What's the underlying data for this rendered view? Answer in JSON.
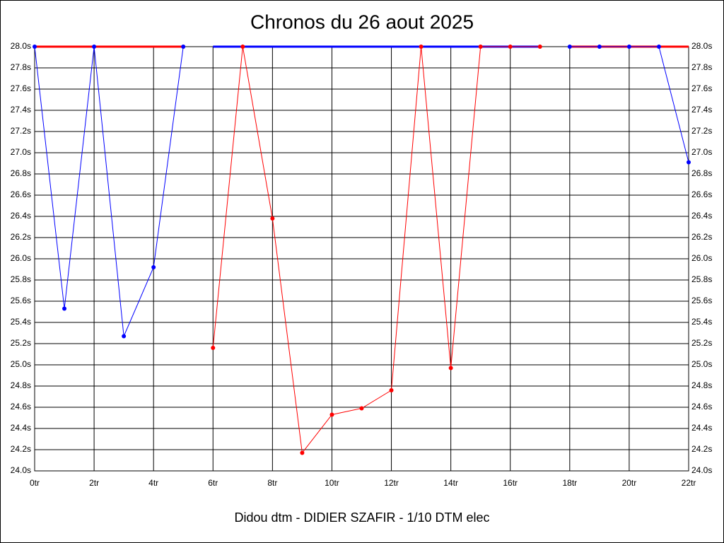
{
  "chart_data": {
    "type": "line",
    "title": "Chronos du 26 aout 2025",
    "footer": "Didou dtm - DIDIER SZAFIR - 1/10 DTM elec",
    "x": [
      0,
      1,
      2,
      3,
      4,
      5,
      6,
      7,
      8,
      9,
      10,
      11,
      12,
      13,
      14,
      15,
      16,
      17,
      18,
      19,
      20,
      21,
      22
    ],
    "xlim": [
      0,
      22
    ],
    "xticks": [
      {
        "value": 0,
        "label": "0tr"
      },
      {
        "value": 2,
        "label": "2tr"
      },
      {
        "value": 4,
        "label": "4tr"
      },
      {
        "value": 6,
        "label": "6tr"
      },
      {
        "value": 8,
        "label": "8tr"
      },
      {
        "value": 10,
        "label": "10tr"
      },
      {
        "value": 12,
        "label": "12tr"
      },
      {
        "value": 14,
        "label": "14tr"
      },
      {
        "value": 16,
        "label": "16tr"
      },
      {
        "value": 18,
        "label": "18tr"
      },
      {
        "value": 20,
        "label": "20tr"
      },
      {
        "value": 22,
        "label": "22tr"
      }
    ],
    "ylim": [
      24,
      28
    ],
    "yticks": [
      {
        "value": 24,
        "label": "24.0s"
      },
      {
        "value": 24.2,
        "label": "24.2s"
      },
      {
        "value": 24.4,
        "label": "24.4s"
      },
      {
        "value": 24.6,
        "label": "24.6s"
      },
      {
        "value": 24.8,
        "label": "24.8s"
      },
      {
        "value": 25,
        "label": "25.0s"
      },
      {
        "value": 25.2,
        "label": "25.2s"
      },
      {
        "value": 25.4,
        "label": "25.4s"
      },
      {
        "value": 25.6,
        "label": "25.6s"
      },
      {
        "value": 25.8,
        "label": "25.8s"
      },
      {
        "value": 26,
        "label": "26.0s"
      },
      {
        "value": 26.2,
        "label": "26.2s"
      },
      {
        "value": 26.4,
        "label": "26.4s"
      },
      {
        "value": 26.6,
        "label": "26.6s"
      },
      {
        "value": 26.8,
        "label": "26.8s"
      },
      {
        "value": 27,
        "label": "27.0s"
      },
      {
        "value": 27.2,
        "label": "27.2s"
      },
      {
        "value": 27.4,
        "label": "27.4s"
      },
      {
        "value": 27.6,
        "label": "27.6s"
      },
      {
        "value": 27.8,
        "label": "27.8s"
      },
      {
        "value": 28,
        "label": "28.0s"
      }
    ],
    "y2lim": [
      24,
      28
    ],
    "y2ticks": [
      {
        "value": 24,
        "label": "24.0s"
      },
      {
        "value": 24.2,
        "label": "24.2s"
      },
      {
        "value": 24.4,
        "label": "24.4s"
      },
      {
        "value": 24.6,
        "label": "24.6s"
      },
      {
        "value": 24.8,
        "label": "24.8s"
      },
      {
        "value": 25,
        "label": "25.0s"
      },
      {
        "value": 25.2,
        "label": "25.2s"
      },
      {
        "value": 25.4,
        "label": "25.4s"
      },
      {
        "value": 25.6,
        "label": "25.6s"
      },
      {
        "value": 25.8,
        "label": "25.8s"
      },
      {
        "value": 26,
        "label": "26.0s"
      },
      {
        "value": 26.2,
        "label": "26.2s"
      },
      {
        "value": 26.4,
        "label": "26.4s"
      },
      {
        "value": 26.6,
        "label": "26.6s"
      },
      {
        "value": 26.8,
        "label": "26.8s"
      },
      {
        "value": 27,
        "label": "27.0s"
      },
      {
        "value": 27.2,
        "label": "27.2s"
      },
      {
        "value": 27.4,
        "label": "27.4s"
      },
      {
        "value": 27.6,
        "label": "27.6s"
      },
      {
        "value": 27.8,
        "label": "27.8s"
      },
      {
        "value": 28,
        "label": "28.0s"
      }
    ],
    "grid": true,
    "series": [
      {
        "color": "#ff0000",
        "line_width": 3,
        "markers": false,
        "values": [
          28,
          28,
          28,
          28,
          28,
          28,
          null,
          null,
          null,
          null,
          null,
          null,
          null,
          null,
          null,
          null,
          null,
          null,
          28,
          28,
          28,
          28,
          28
        ]
      },
      {
        "color": "#0000ff",
        "line_width": 3,
        "markers": false,
        "values": [
          null,
          null,
          null,
          null,
          null,
          null,
          28,
          28,
          28,
          28,
          28,
          28,
          28,
          28,
          28,
          28,
          28,
          28,
          null,
          null,
          null,
          null,
          null
        ]
      },
      {
        "color": "#0000ff",
        "line_width": 1,
        "markers": true,
        "values": [
          28,
          25.53,
          28,
          25.27,
          25.92,
          28,
          null,
          null,
          null,
          null,
          null,
          null,
          null,
          null,
          null,
          null,
          null,
          null,
          28,
          28,
          28,
          28,
          26.91
        ]
      },
      {
        "color": "#ff0000",
        "line_width": 1,
        "markers": true,
        "values": [
          null,
          null,
          null,
          null,
          null,
          null,
          25.16,
          28,
          26.38,
          24.17,
          24.53,
          24.59,
          24.76,
          28,
          24.97,
          28,
          28,
          28,
          null,
          null,
          null,
          null,
          null
        ]
      }
    ]
  }
}
